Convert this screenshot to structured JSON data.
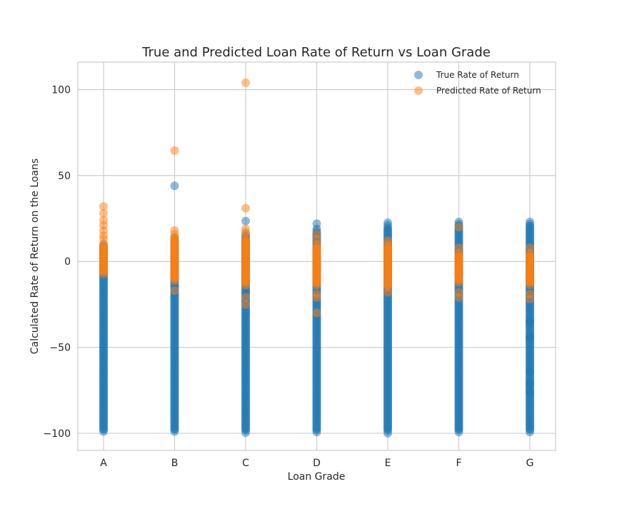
{
  "chart_data": {
    "type": "scatter",
    "title": "True and Predicted Loan Rate of Return vs Loan Grade",
    "xlabel": "Loan Grade",
    "ylabel": "Calculated Rate of Return on the Loans",
    "categories": [
      "A",
      "B",
      "C",
      "D",
      "E",
      "F",
      "G"
    ],
    "yticks": [
      100,
      50,
      0,
      -50,
      -100
    ],
    "ytick_labels": [
      "100",
      "50",
      "0",
      "−50",
      "−100"
    ],
    "ylim": [
      -110,
      116
    ],
    "grid": true,
    "legend_position": "top-right",
    "series": [
      {
        "name": "True Rate of Return",
        "color": "#1f77b4",
        "bands": [
          {
            "category": "A",
            "min": -100,
            "max": 10
          },
          {
            "category": "B",
            "min": -100,
            "max": 14
          },
          {
            "category": "C",
            "min": -100,
            "max": 16
          },
          {
            "category": "D",
            "min": -100,
            "max": 19
          },
          {
            "category": "E",
            "min": -100,
            "max": 21
          },
          {
            "category": "F",
            "min": -100,
            "max": 23
          },
          {
            "category": "G",
            "min": -100,
            "max": 23
          }
        ],
        "outliers": [
          {
            "category": "B",
            "value": 44
          },
          {
            "category": "C",
            "value": 23.5
          },
          {
            "category": "D",
            "value": 22
          },
          {
            "category": "E",
            "value": 22.5
          },
          {
            "category": "G",
            "value": -76
          },
          {
            "category": "G",
            "value": -71
          },
          {
            "category": "G",
            "value": -64
          },
          {
            "category": "G",
            "value": -44
          },
          {
            "category": "G",
            "value": -35
          }
        ]
      },
      {
        "name": "Predicted Rate of Return",
        "color": "#ff7f0e",
        "bands": [
          {
            "category": "A",
            "min": -8,
            "max": 10
          },
          {
            "category": "B",
            "min": -12,
            "max": 14
          },
          {
            "category": "C",
            "min": -14,
            "max": 14
          },
          {
            "category": "D",
            "min": -15,
            "max": 10
          },
          {
            "category": "E",
            "min": -16,
            "max": 10
          },
          {
            "category": "F",
            "min": -13,
            "max": 5
          },
          {
            "category": "G",
            "min": -14,
            "max": 5
          }
        ],
        "outliers": [
          {
            "category": "A",
            "value": 32
          },
          {
            "category": "A",
            "value": 28
          },
          {
            "category": "A",
            "value": 24
          },
          {
            "category": "A",
            "value": 21
          },
          {
            "category": "A",
            "value": 18
          },
          {
            "category": "A",
            "value": 15
          },
          {
            "category": "A",
            "value": 13
          },
          {
            "category": "B",
            "value": 64.5
          },
          {
            "category": "B",
            "value": 18
          },
          {
            "category": "B",
            "value": 16
          },
          {
            "category": "B",
            "value": -17
          },
          {
            "category": "C",
            "value": 104
          },
          {
            "category": "C",
            "value": 31
          },
          {
            "category": "C",
            "value": 19
          },
          {
            "category": "C",
            "value": 17
          },
          {
            "category": "C",
            "value": -21
          },
          {
            "category": "C",
            "value": -25
          },
          {
            "category": "D",
            "value": 16
          },
          {
            "category": "D",
            "value": 13
          },
          {
            "category": "D",
            "value": -19
          },
          {
            "category": "D",
            "value": -21
          },
          {
            "category": "D",
            "value": -30
          },
          {
            "category": "E",
            "value": 12
          },
          {
            "category": "E",
            "value": -18
          },
          {
            "category": "F",
            "value": 20
          },
          {
            "category": "F",
            "value": 8
          },
          {
            "category": "F",
            "value": -18
          },
          {
            "category": "F",
            "value": -21
          },
          {
            "category": "G",
            "value": 8
          },
          {
            "category": "G",
            "value": -19
          },
          {
            "category": "G",
            "value": -22
          }
        ]
      }
    ]
  }
}
